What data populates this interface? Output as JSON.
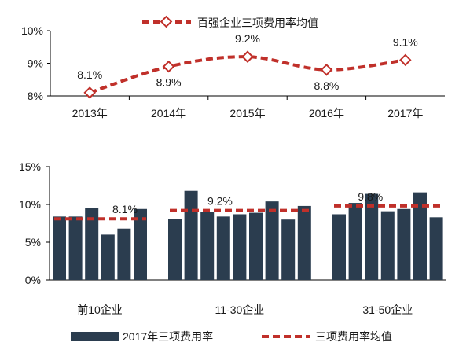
{
  "colors": {
    "line_red": "#c0302a",
    "bar_navy": "#2b3d4f",
    "axis": "#000000",
    "text": "#1a1a1a"
  },
  "chart_data": [
    {
      "type": "line",
      "legend": "百强企业三项费用率均值",
      "legend_position": "top",
      "categories": [
        "2013年",
        "2014年",
        "2015年",
        "2016年",
        "2017年"
      ],
      "series": [
        {
          "name": "百强企业三项费用率均值",
          "values": [
            8.1,
            8.9,
            9.2,
            8.8,
            9.1
          ],
          "labels": [
            "8.1%",
            "8.9%",
            "9.2%",
            "8.8%",
            "9.1%"
          ]
        }
      ],
      "ylim": [
        8,
        10
      ],
      "yticks": [
        "8%",
        "9%",
        "10%"
      ],
      "line_style": "dashed, smoothed, hollow diamond markers",
      "grid": false
    },
    {
      "type": "bar",
      "groups": [
        "前10企业",
        "11-30企业",
        "31-50企业"
      ],
      "series": [
        {
          "name": "2017年三项费用率",
          "values": [
            [
              8.4,
              8.4,
              9.5,
              6.0,
              6.8,
              9.4
            ],
            [
              8.1,
              11.8,
              9.0,
              8.4,
              8.7,
              8.9,
              10.4,
              8.0,
              9.8
            ],
            [
              8.7,
              10.2,
              11.4,
              9.1,
              9.4,
              11.6,
              8.3
            ]
          ]
        },
        {
          "name": "三项费用率均值",
          "values": [
            8.1,
            9.2,
            9.8
          ],
          "labels": [
            "8.1%",
            "9.2%",
            "9.8%"
          ]
        }
      ],
      "ylim": [
        0,
        15
      ],
      "yticks": [
        "0%",
        "5%",
        "10%",
        "15%"
      ],
      "legend": [
        "2017年三项费用率",
        "三项费用率均值"
      ],
      "legend_position": "bottom",
      "grid": false
    }
  ]
}
